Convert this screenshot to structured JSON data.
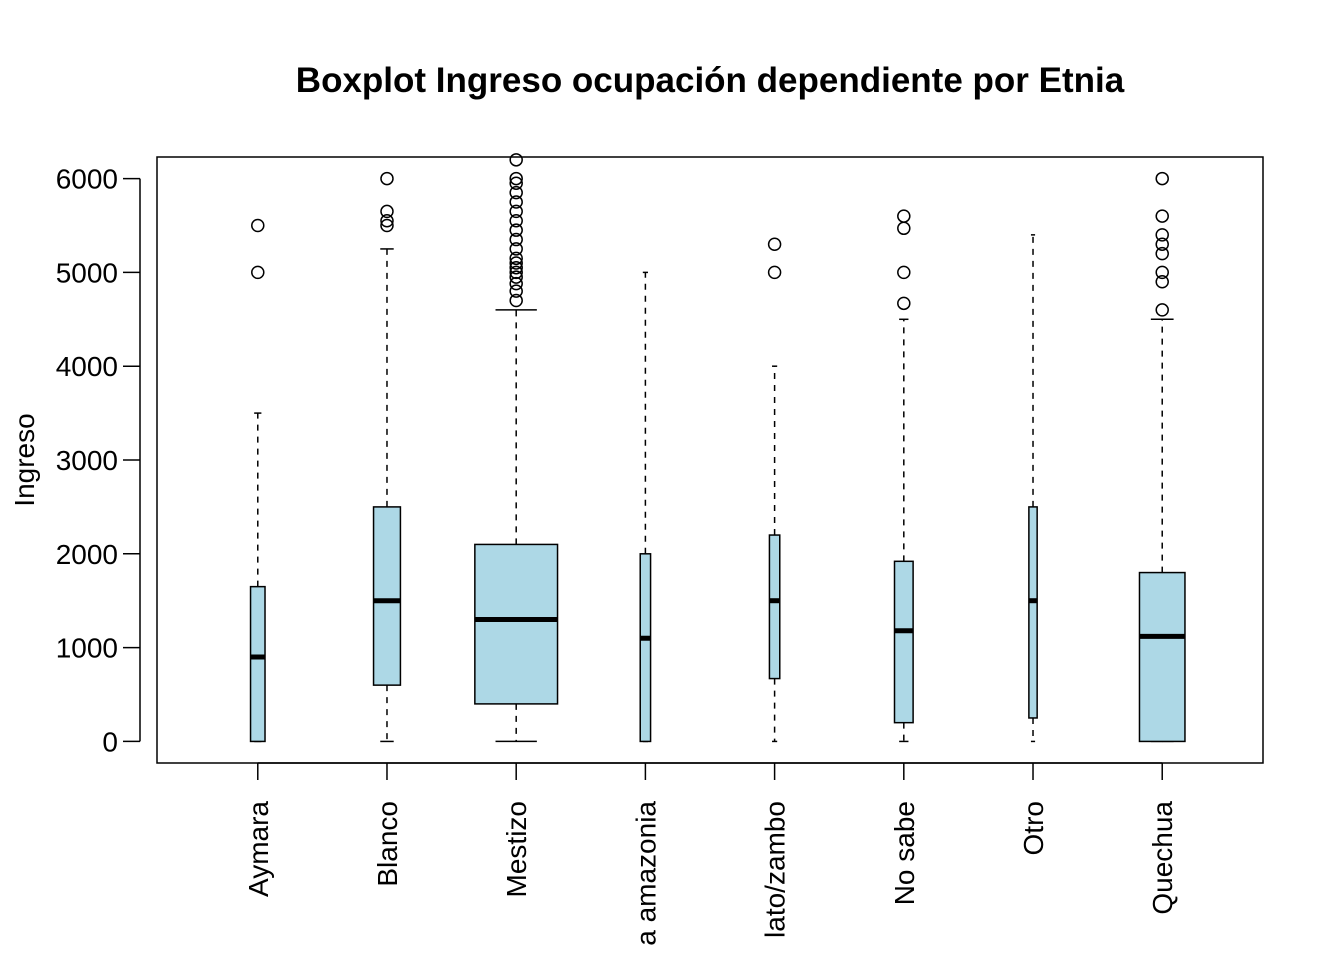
{
  "chart_data": {
    "type": "boxplot",
    "title": "Boxplot Ingreso ocupación dependiente por Etnia",
    "xlabel": "",
    "ylabel": "Ingreso",
    "ylim": [
      -230,
      6230
    ],
    "yticks": [
      0,
      1000,
      2000,
      3000,
      4000,
      5000,
      6000
    ],
    "grid": false,
    "legend": "none",
    "colors": {
      "box_fill": "#ADD8E6",
      "stroke": "#000000"
    },
    "categories": [
      "Aymara",
      "Blanco",
      "Mestizo",
      "a amazonia",
      "lato/zambo",
      "No sabe",
      "Otro",
      "Quechua"
    ],
    "boxes": [
      {
        "name": "Aymara",
        "whisker_low": 0,
        "q1": 0,
        "median": 900,
        "q3": 1650,
        "whisker_high": 3500,
        "outliers": [
          5000,
          5500
        ],
        "relwidth": 0.14
      },
      {
        "name": "Blanco",
        "whisker_low": 0,
        "q1": 600,
        "median": 1500,
        "q3": 2500,
        "whisker_high": 5250,
        "outliers": [
          5500,
          5550,
          5650,
          6000
        ],
        "relwidth": 0.26
      },
      {
        "name": "Mestizo",
        "whisker_low": 0,
        "q1": 400,
        "median": 1300,
        "q3": 2100,
        "whisker_high": 4600,
        "outliers": [
          4700,
          4800,
          4880,
          4950,
          5000,
          5050,
          5100,
          5150,
          5250,
          5350,
          5450,
          5550,
          5650,
          5750,
          5850,
          5950,
          6000,
          6200
        ],
        "relwidth": 0.8
      },
      {
        "name": "a amazonia",
        "whisker_low": 0,
        "q1": 0,
        "median": 1100,
        "q3": 2000,
        "whisker_high": 5000,
        "outliers": [],
        "relwidth": 0.1
      },
      {
        "name": "lato/zambo",
        "whisker_low": 0,
        "q1": 670,
        "median": 1500,
        "q3": 2200,
        "whisker_high": 4000,
        "outliers": [
          5000,
          5300
        ],
        "relwidth": 0.1
      },
      {
        "name": "No sabe",
        "whisker_low": 0,
        "q1": 200,
        "median": 1180,
        "q3": 1920,
        "whisker_high": 4500,
        "outliers": [
          4670,
          5000,
          5470,
          5600
        ],
        "relwidth": 0.18
      },
      {
        "name": "Otro",
        "whisker_low": 0,
        "q1": 250,
        "median": 1500,
        "q3": 2500,
        "whisker_high": 5400,
        "outliers": [],
        "relwidth": 0.08
      },
      {
        "name": "Quechua",
        "whisker_low": 0,
        "q1": 0,
        "median": 1120,
        "q3": 1800,
        "whisker_high": 4500,
        "outliers": [
          4600,
          4900,
          5000,
          5200,
          5300,
          5400,
          5600,
          6000
        ],
        "relwidth": 0.44
      }
    ]
  }
}
